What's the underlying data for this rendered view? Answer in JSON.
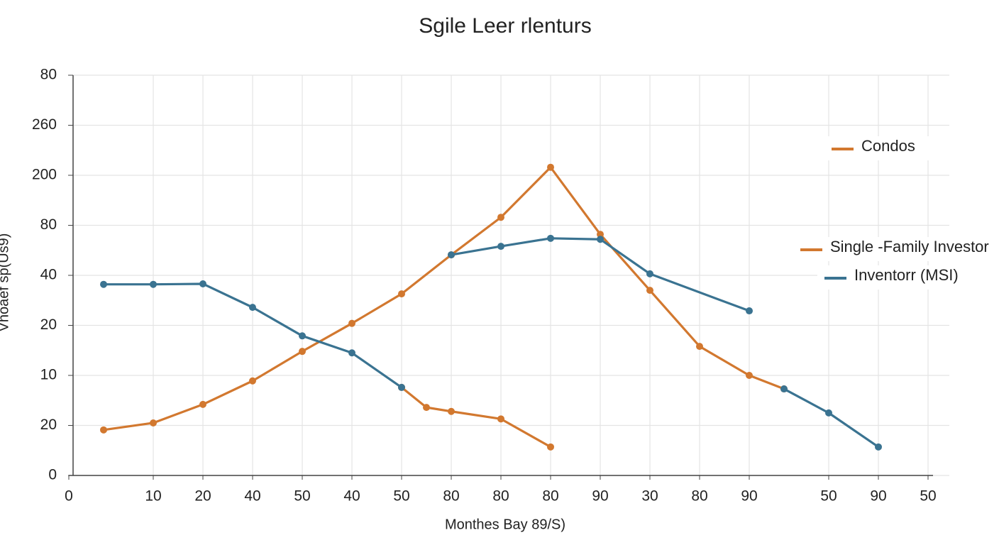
{
  "chart_data": {
    "type": "line",
    "title": "Sgile Leer rlenturs",
    "xlabel": "Monthes Bay 89/S)",
    "ylabel": "Vhoaef sp(Us9)",
    "xlim": [
      -0.7,
      16.7
    ],
    "ylim": [
      0,
      80
    ],
    "xticks": [
      {
        "value": -0.7,
        "label": "0"
      },
      {
        "value": 1,
        "label": "10"
      },
      {
        "value": 2,
        "label": "20"
      },
      {
        "value": 3,
        "label": "40"
      },
      {
        "value": 4,
        "label": "50"
      },
      {
        "value": 5,
        "label": "40"
      },
      {
        "value": 6,
        "label": "50"
      },
      {
        "value": 7,
        "label": "80"
      },
      {
        "value": 8,
        "label": "80"
      },
      {
        "value": 9,
        "label": "80"
      },
      {
        "value": 10,
        "label": "90"
      },
      {
        "value": 11,
        "label": "30"
      },
      {
        "value": 12,
        "label": "80"
      },
      {
        "value": 13,
        "label": "90"
      },
      {
        "value": 14.6,
        "label": "50"
      },
      {
        "value": 15.6,
        "label": "90"
      },
      {
        "value": 16.6,
        "label": "50"
      }
    ],
    "yticks": [
      0,
      {
        "value": 10,
        "label": "20"
      },
      {
        "value": 20,
        "label": "10"
      },
      {
        "value": 30,
        "label": "20"
      },
      40,
      {
        "value": 50,
        "label": "80"
      },
      {
        "value": 60,
        "label": "200"
      },
      {
        "value": 70,
        "label": "260"
      },
      80
    ],
    "grid": true,
    "series": [
      {
        "name": "Condos",
        "color": "#d2782f",
        "x": [
          0,
          1,
          2,
          3,
          4,
          5,
          6,
          7,
          8,
          9,
          10,
          11,
          12,
          13,
          13.7
        ],
        "values": [
          9.1,
          10.5,
          14.2,
          18.9,
          24.8,
          30.4,
          36.3,
          44.1,
          51.6,
          61.6,
          48.2,
          37.0,
          25.8,
          20.0,
          17.3
        ]
      },
      {
        "name": "Single -Family Investor",
        "color": "#d2782f",
        "x": [
          6,
          6.5,
          7,
          8,
          9
        ],
        "values": [
          17.6,
          13.6,
          12.8,
          11.3,
          5.7
        ]
      },
      {
        "name": "Inventorr (MSI)",
        "color": "#3a7391",
        "x": [
          0,
          1,
          2,
          3,
          4,
          5,
          6,
          6.5,
          7,
          8,
          9,
          10,
          11,
          13,
          13.3,
          13.7,
          14.6,
          15.6
        ],
        "values": [
          38.2,
          38.2,
          38.3,
          33.6,
          27.9,
          24.5,
          17.6,
          null,
          44.1,
          45.8,
          47.4,
          47.2,
          40.3,
          32.9,
          null,
          17.3,
          12.5,
          5.7
        ]
      }
    ]
  }
}
